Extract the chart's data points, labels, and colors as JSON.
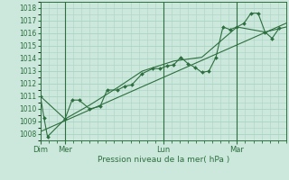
{
  "background_color": "#cce8dc",
  "grid_color": "#aad4c4",
  "line_color": "#2d6e3e",
  "text_color": "#2d6e3e",
  "xlabel": "Pression niveau de la mer( hPa )",
  "ylim": [
    1007.5,
    1018.5
  ],
  "yticks": [
    1008,
    1009,
    1010,
    1011,
    1012,
    1013,
    1014,
    1015,
    1016,
    1017,
    1018
  ],
  "xlim": [
    0,
    210
  ],
  "day_labels": [
    "Dim",
    "Mer",
    "Lun",
    "Mar"
  ],
  "day_positions": [
    0,
    21,
    105,
    168
  ],
  "vline_positions": [
    21,
    105,
    168
  ],
  "series1_x": [
    0,
    3,
    6,
    21,
    27,
    33,
    42,
    51,
    57,
    66,
    72,
    78,
    87,
    96,
    102,
    108,
    114,
    120,
    126,
    132,
    138,
    144,
    150,
    156,
    162,
    168,
    174,
    180,
    186,
    192,
    198,
    204
  ],
  "series1_y": [
    1011.0,
    1009.3,
    1007.8,
    1009.2,
    1010.7,
    1010.7,
    1010.0,
    1010.2,
    1011.5,
    1011.5,
    1011.8,
    1011.9,
    1012.8,
    1013.2,
    1013.2,
    1013.4,
    1013.5,
    1014.1,
    1013.6,
    1013.3,
    1012.9,
    1013.0,
    1014.1,
    1016.5,
    1016.3,
    1016.5,
    1016.8,
    1017.6,
    1017.6,
    1016.1,
    1015.6,
    1016.4
  ],
  "series2_x": [
    0,
    21,
    42,
    66,
    87,
    114,
    138,
    168,
    192,
    210
  ],
  "series2_y": [
    1011.0,
    1009.2,
    1010.3,
    1011.7,
    1013.0,
    1013.8,
    1014.1,
    1016.5,
    1016.1,
    1016.5
  ],
  "trend_x": [
    0,
    210
  ],
  "trend_y": [
    1008.2,
    1016.8
  ]
}
